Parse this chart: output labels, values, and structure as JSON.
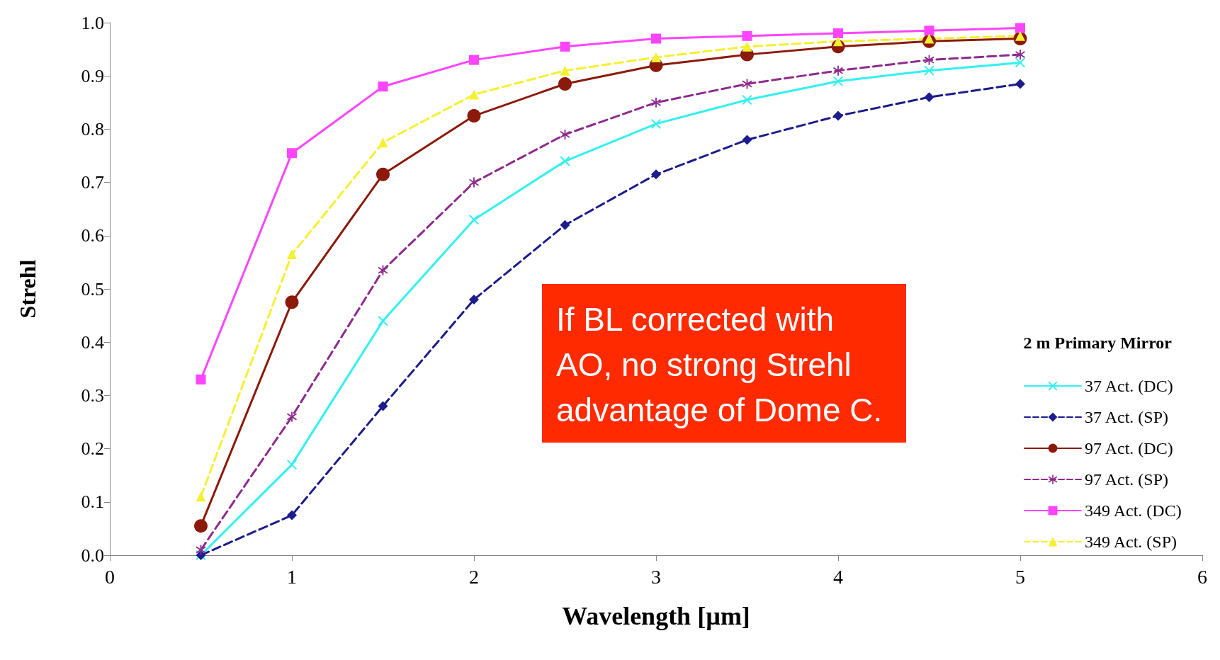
{
  "chart_data": {
    "type": "line",
    "xlabel": "Wavelength [µm]",
    "ylabel": "Strehl",
    "legend_title": "2 m Primary Mirror",
    "legend": "bottom right",
    "grid": false,
    "x": [
      0.5,
      1,
      1.5,
      2,
      2.5,
      3,
      3.5,
      4,
      4.5,
      5
    ],
    "xlim": [
      0,
      6
    ],
    "xticks": [
      0,
      1,
      2,
      3,
      4,
      5,
      6
    ],
    "ylim": [
      0,
      1
    ],
    "yticks": [
      {
        "value": 0,
        "label": "0.0"
      },
      0.1,
      0.2,
      0.3,
      0.4,
      0.5,
      0.6,
      0.7,
      0.8,
      0.9,
      {
        "value": 1,
        "label": "1.0"
      }
    ],
    "annotations": [
      "If BL corrected with AO, no strong Strehl advantage of Dome C."
    ],
    "series": [
      {
        "name": "37 Act. (DC)",
        "color": "#33f0f0",
        "marker": "cross",
        "line_style": "solid",
        "values": [
          0.0,
          0.17,
          0.44,
          0.63,
          0.74,
          0.81,
          0.855,
          0.89,
          0.91,
          0.925
        ]
      },
      {
        "name": "37 Act. (SP)",
        "color": "#1c1c8c",
        "marker": "diamond",
        "line_style": "dashed",
        "values": [
          0.0,
          0.075,
          0.28,
          0.48,
          0.62,
          0.715,
          0.78,
          0.825,
          0.86,
          0.885
        ]
      },
      {
        "name": "97 Act. (DC)",
        "color": "#8b1a0a",
        "marker": "circle",
        "line_style": "solid",
        "values": [
          0.055,
          0.475,
          0.715,
          0.825,
          0.885,
          0.92,
          0.94,
          0.955,
          0.965,
          0.97
        ]
      },
      {
        "name": "97 Act. (SP)",
        "color": "#8e2a8e",
        "marker": "star",
        "line_style": "dashed",
        "values": [
          0.01,
          0.26,
          0.535,
          0.7,
          0.79,
          0.85,
          0.885,
          0.91,
          0.93,
          0.94
        ]
      },
      {
        "name": "349 Act. (DC)",
        "color": "#ff44ff",
        "marker": "square",
        "line_style": "solid",
        "values": [
          0.33,
          0.755,
          0.88,
          0.93,
          0.955,
          0.97,
          0.975,
          0.98,
          0.985,
          0.99
        ]
      },
      {
        "name": "349 Act. (SP)",
        "color": "#f5f030",
        "marker": "triangle",
        "line_style": "dashed",
        "values": [
          0.11,
          0.565,
          0.775,
          0.865,
          0.91,
          0.935,
          0.955,
          0.965,
          0.97,
          0.975
        ]
      }
    ]
  }
}
